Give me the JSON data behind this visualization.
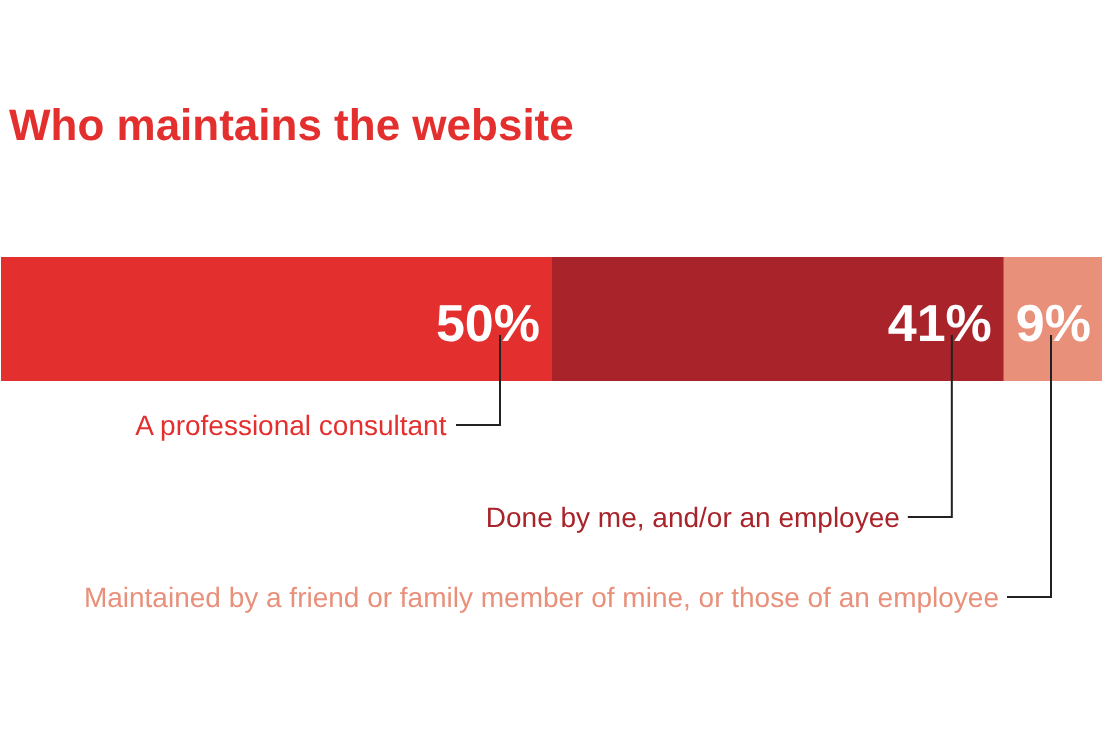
{
  "chart_data": {
    "type": "bar",
    "orientation": "horizontal",
    "stacked": true,
    "title": "Who maintains the website",
    "categories": [
      null
    ],
    "xlim": [
      0,
      100
    ],
    "tick_labels": false,
    "grid": false,
    "legend": false,
    "series": [
      {
        "name": "A professional consultant",
        "color": "#e3302f",
        "values": [
          50
        ],
        "value_labels": [
          "50%"
        ]
      },
      {
        "name": "Done by me, and/or an employee",
        "color": "#a8232a",
        "values": [
          41
        ],
        "value_labels": [
          "41%"
        ]
      },
      {
        "name": "Maintained by a friend or family member of mine, or those of an employee",
        "color": "#e8907a",
        "values": [
          9
        ],
        "value_labels": [
          "9%"
        ]
      }
    ]
  }
}
